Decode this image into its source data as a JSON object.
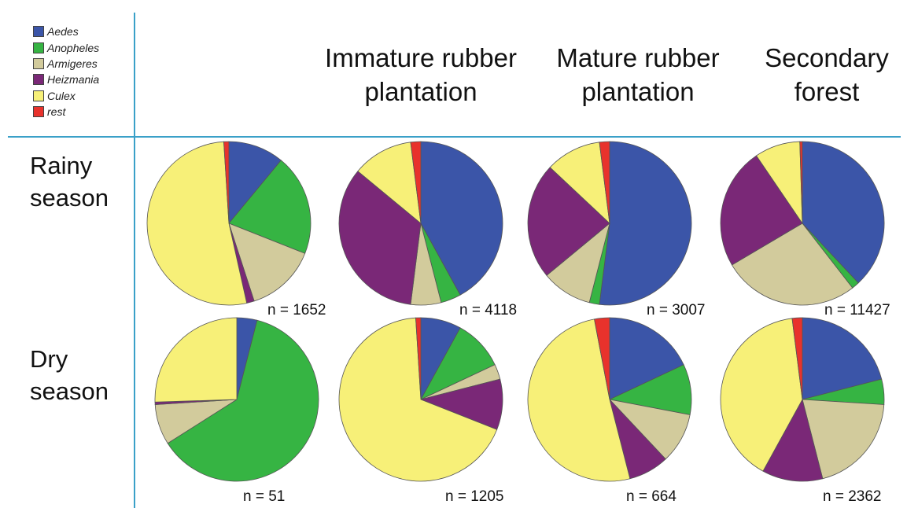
{
  "chart_data": {
    "type": "pie",
    "legend": {
      "placement": "top-left",
      "entries": [
        {
          "name": "Aedes",
          "color": "#3b55a8"
        },
        {
          "name": "Anopheles",
          "color": "#36b443"
        },
        {
          "name": "Armigeres",
          "color": "#d2cb9c"
        },
        {
          "name": "Heizmania",
          "color": "#7a2877"
        },
        {
          "name": "Culex",
          "color": "#f7f078"
        },
        {
          "name": "rest",
          "color": "#e8322c"
        }
      ]
    },
    "columns": [
      "Immature rubber plantation",
      "Mature rubber plantation",
      "Secondary forest"
    ],
    "rows": [
      "Rainy season",
      "Dry season"
    ],
    "pies": [
      {
        "row": "Rainy season",
        "column": "",
        "n_label": "n = 1652",
        "values": [
          11,
          20,
          14,
          1.5,
          52.5,
          1
        ]
      },
      {
        "row": "Rainy season",
        "column": "Immature rubber plantation",
        "n_label": "n = 4118",
        "values": [
          42,
          4,
          6,
          34,
          12,
          2
        ]
      },
      {
        "row": "Rainy season",
        "column": "Mature rubber plantation",
        "n_label": "n = 3007",
        "values": [
          52,
          2,
          10,
          23,
          11,
          2
        ]
      },
      {
        "row": "Rainy season",
        "column": "Secondary forest",
        "n_label": "n = 11427",
        "values": [
          38,
          1.5,
          27,
          24,
          9,
          0.5
        ]
      },
      {
        "row": "Dry season",
        "column": "",
        "n_label": "n = 51",
        "values": [
          4,
          62,
          8,
          0.5,
          25.5,
          0
        ]
      },
      {
        "row": "Dry season",
        "column": "Immature rubber plantation",
        "n_label": "n = 1205",
        "values": [
          8,
          10,
          3,
          10,
          68,
          1
        ]
      },
      {
        "row": "Dry season",
        "column": "Mature rubber plantation",
        "n_label": "n = 664",
        "values": [
          18,
          10,
          10,
          8,
          51,
          3
        ]
      },
      {
        "row": "Dry season",
        "column": "Secondary forest",
        "n_label": "n = 2362",
        "values": [
          21,
          5,
          20,
          12,
          40,
          2
        ]
      }
    ]
  }
}
